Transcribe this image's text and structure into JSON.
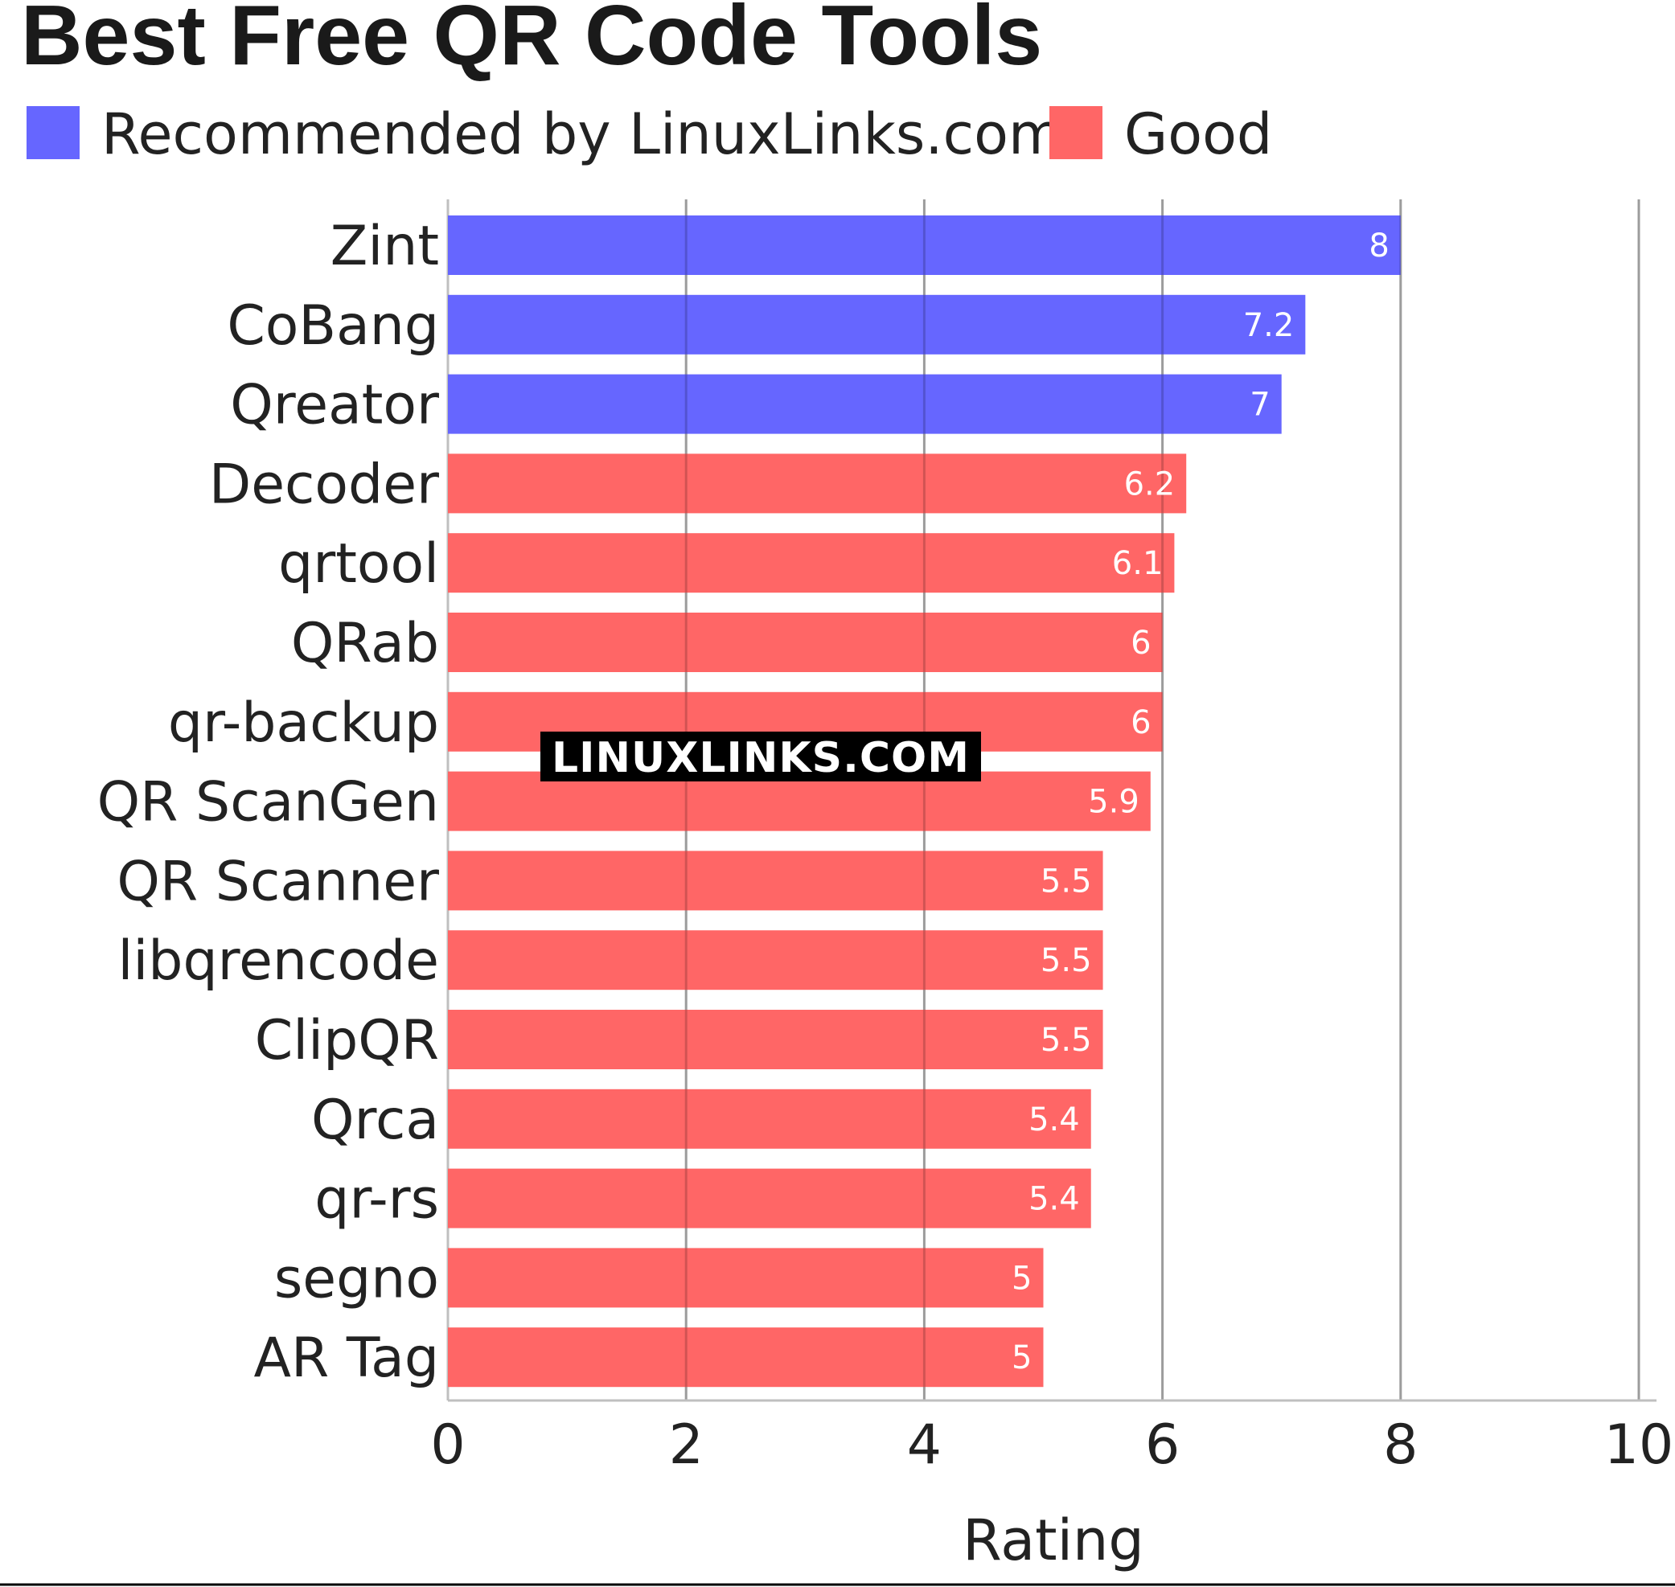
{
  "chart_data": {
    "type": "bar",
    "orientation": "horizontal",
    "title": "Best Free QR Code Tools",
    "xlabel": "Rating",
    "ylabel": "",
    "xlim": [
      0,
      10
    ],
    "xticks": [
      0,
      2,
      4,
      6,
      8,
      10
    ],
    "grid": true,
    "legend_position": "top-left",
    "legend": [
      {
        "name": "Recommended by LinuxLinks.com",
        "color": "#6666ff"
      },
      {
        "name": "Good",
        "color": "#ff6666"
      }
    ],
    "categories": [
      "Zint",
      "CoBang",
      "Qreator",
      "Decoder",
      "qrtool",
      "QRab",
      "qr-backup",
      "QR ScanGen",
      "QR Scanner",
      "libqrencode",
      "ClipQR",
      "Qrca",
      "qr-rs",
      "segno",
      "AR Tag"
    ],
    "values": [
      8,
      7.2,
      7,
      6.2,
      6.1,
      6,
      6,
      5.9,
      5.5,
      5.5,
      5.5,
      5.4,
      5.4,
      5,
      5
    ],
    "value_labels": [
      "8",
      "7.2",
      "7",
      "6.2",
      "6.1",
      "6",
      "6",
      "5.9",
      "5.5",
      "5.5",
      "5.5",
      "5.4",
      "5.4",
      "5",
      "5"
    ],
    "groups": [
      "Recommended by LinuxLinks.com",
      "Recommended by LinuxLinks.com",
      "Recommended by LinuxLinks.com",
      "Good",
      "Good",
      "Good",
      "Good",
      "Good",
      "Good",
      "Good",
      "Good",
      "Good",
      "Good",
      "Good",
      "Good"
    ],
    "watermark": "LINUXLINKS.COM"
  }
}
